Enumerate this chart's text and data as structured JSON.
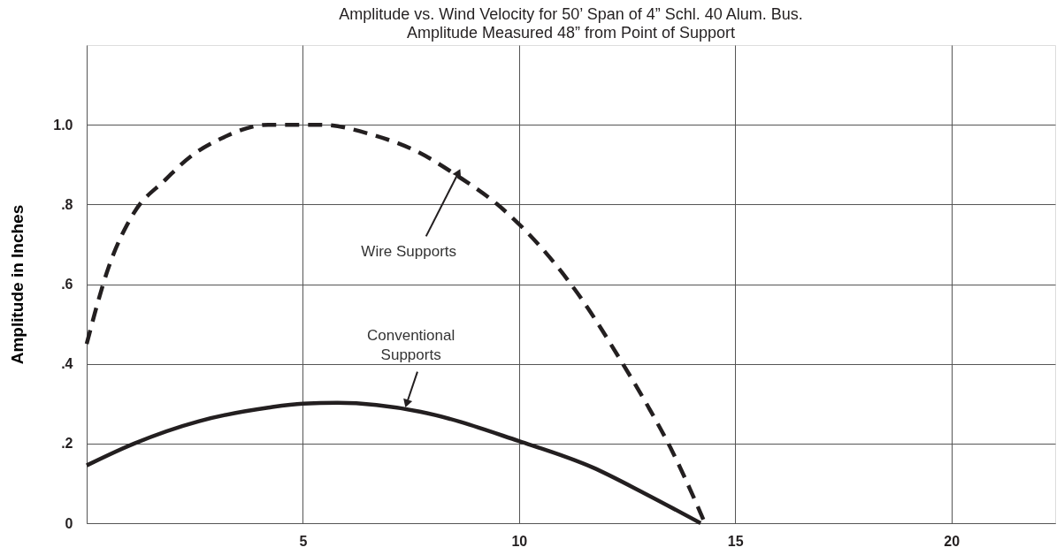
{
  "chart_data": {
    "type": "line",
    "title": "Amplitude vs. Wind Velocity for 50’ Span of 4” Schl. 40 Alum. Bus.",
    "subtitle": "Amplitude Measured 48” from Point of Support",
    "ylabel": "Amplitude in Inches",
    "series": [
      {
        "color": "#231f20",
        "line_style": "dashed",
        "x": [
          0,
          0.5,
          1.1,
          1.8,
          2.4,
          3.1,
          4.2,
          5.4,
          6.6,
          7.6,
          8.6,
          9.5,
          11.4,
          12.4,
          13.0,
          13.5,
          14.1,
          14.3
        ],
        "values": [
          0.45,
          0.64,
          0.78,
          0.86,
          0.92,
          0.965,
          1.0,
          1.0,
          0.975,
          0.935,
          0.87,
          0.8,
          0.57,
          0.4,
          0.29,
          0.19,
          0.05,
          0
        ]
      },
      {
        "color": "#231f20",
        "line_style": "solid",
        "x": [
          0,
          1.1,
          2.6,
          4.2,
          5.0,
          5.8,
          7.7,
          10.0,
          11.7,
          12.9,
          14.2
        ],
        "values": [
          0.145,
          0.2,
          0.256,
          0.29,
          0.3,
          0.302,
          0.28,
          0.206,
          0.14,
          0.075,
          0
        ]
      }
    ],
    "annotations": [
      {
        "text": "Wire Supports",
        "x": 8.6,
        "y": 0.88
      },
      {
        "text": "Conventional\nSupports",
        "x": 7.4,
        "y": 0.3
      }
    ],
    "xlim": [
      0,
      22.4
    ],
    "ylim": [
      0,
      1.2
    ],
    "xticks": [
      5,
      10,
      15,
      20
    ],
    "yticks": [
      {
        "value": 0,
        "label": "0"
      },
      {
        "value": 0.2,
        "label": ".2"
      },
      {
        "value": 0.4,
        "label": ".4"
      },
      {
        "value": 0.6,
        "label": ".6"
      },
      {
        "value": 0.8,
        "label": ".8"
      },
      {
        "value": 1.0,
        "label": "1.0"
      }
    ],
    "grid": true,
    "marker": "none"
  }
}
